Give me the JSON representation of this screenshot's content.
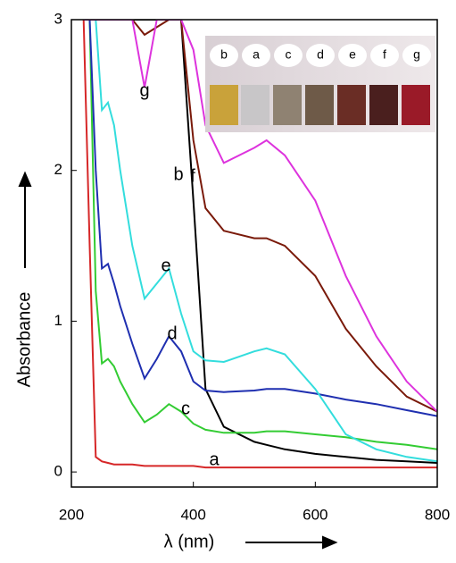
{
  "chart_data": {
    "type": "line",
    "x_label": "λ (nm)",
    "y_label": "Absorbance",
    "x": [
      220,
      230,
      240,
      250,
      260,
      270,
      280,
      300,
      320,
      340,
      360,
      380,
      400,
      420,
      450,
      500,
      520,
      550,
      600,
      650,
      700,
      750,
      800
    ],
    "series": [
      {
        "name": "a",
        "color": "#d62728",
        "values": [
          3,
          1.5,
          0.1,
          0.07,
          0.06,
          0.05,
          0.05,
          0.05,
          0.04,
          0.04,
          0.04,
          0.04,
          0.04,
          0.03,
          0.03,
          0.03,
          0.03,
          0.03,
          0.03,
          0.03,
          0.03,
          0.03,
          0.03
        ]
      },
      {
        "name": "b",
        "color": "#000000",
        "values": [
          3,
          3,
          3,
          3,
          3,
          3,
          3,
          3,
          3,
          3,
          3,
          3,
          1.8,
          0.55,
          0.3,
          0.2,
          0.18,
          0.15,
          0.12,
          0.1,
          0.08,
          0.07,
          0.06
        ]
      },
      {
        "name": "c",
        "color": "#33cc33",
        "values": [
          3,
          3,
          1.2,
          0.72,
          0.75,
          0.7,
          0.6,
          0.45,
          0.33,
          0.38,
          0.45,
          0.4,
          0.32,
          0.28,
          0.26,
          0.26,
          0.27,
          0.27,
          0.25,
          0.23,
          0.2,
          0.18,
          0.15
        ]
      },
      {
        "name": "d",
        "color": "#1f2fb0",
        "values": [
          3,
          3,
          2,
          1.35,
          1.38,
          1.25,
          1.1,
          0.85,
          0.62,
          0.75,
          0.9,
          0.8,
          0.6,
          0.54,
          0.53,
          0.54,
          0.55,
          0.55,
          0.52,
          0.48,
          0.45,
          0.41,
          0.37
        ]
      },
      {
        "name": "e",
        "color": "#33dddd",
        "values": [
          3,
          3,
          3,
          2.4,
          2.45,
          2.3,
          2.0,
          1.5,
          1.15,
          1.25,
          1.35,
          1.05,
          0.8,
          0.74,
          0.73,
          0.8,
          0.82,
          0.78,
          0.55,
          0.25,
          0.15,
          0.1,
          0.07
        ]
      },
      {
        "name": "f",
        "color": "#7a1a0a",
        "values": [
          3,
          3,
          3,
          3,
          3,
          3,
          3,
          3,
          2.9,
          2.95,
          3,
          3,
          2.2,
          1.75,
          1.6,
          1.55,
          1.55,
          1.5,
          1.3,
          0.95,
          0.7,
          0.5,
          0.4
        ]
      },
      {
        "name": "g",
        "color": "#dd33dd",
        "values": [
          3,
          3,
          3,
          3,
          3,
          3,
          3,
          3,
          2.55,
          3,
          3,
          3,
          2.8,
          2.3,
          2.05,
          2.15,
          2.2,
          2.1,
          1.8,
          1.3,
          0.9,
          0.6,
          0.4
        ]
      }
    ],
    "xlim": [
      200,
      800
    ],
    "ylim": [
      -0.1,
      3
    ],
    "xticks": [
      200,
      400,
      600,
      800
    ],
    "yticks": [
      0,
      1,
      2,
      3
    ],
    "inset_labels": [
      "b",
      "a",
      "c",
      "d",
      "e",
      "f",
      "g"
    ]
  }
}
